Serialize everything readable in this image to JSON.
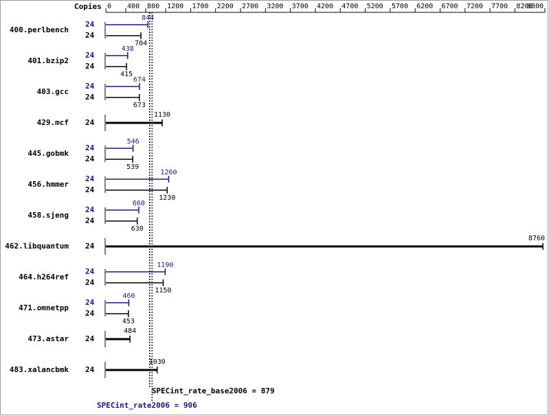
{
  "chart_data": {
    "type": "bar",
    "copies_title": "Copies",
    "categories": [
      "400.perlbench",
      "401.bzip2",
      "403.gcc",
      "429.mcf",
      "445.gobmk",
      "456.hmmer",
      "458.sjeng",
      "462.libquantum",
      "464.h264ref",
      "471.omnetpp",
      "473.astar",
      "483.xalancbmk"
    ],
    "series": [
      {
        "color": "#191970",
        "copies": [
          24,
          24,
          24,
          null,
          24,
          24,
          24,
          null,
          24,
          24,
          null,
          null
        ],
        "values": [
          844,
          438,
          674,
          null,
          546,
          1260,
          660,
          null,
          1190,
          460,
          null,
          null
        ]
      },
      {
        "color": "#000000",
        "copies": [
          24,
          24,
          24,
          24,
          24,
          24,
          24,
          24,
          24,
          24,
          24,
          24
        ],
        "values": [
          704,
          415,
          673,
          1130,
          539,
          1230,
          630,
          8760,
          1150,
          453,
          484,
          1030
        ]
      }
    ],
    "xlim": [
      0,
      8800
    ],
    "xticks": [
      0,
      400,
      800,
      1200,
      1700,
      2200,
      2700,
      3200,
      3700,
      4200,
      4700,
      5200,
      5700,
      6200,
      6700,
      7200,
      7700,
      8200,
      8800
    ],
    "reference_lines": [
      {
        "label": "SPECint_rate_base2006 = 879",
        "value": 879,
        "color": "#000000"
      },
      {
        "label": "SPECint_rate2006 = 906",
        "value": 906,
        "color": "#191970"
      }
    ]
  }
}
